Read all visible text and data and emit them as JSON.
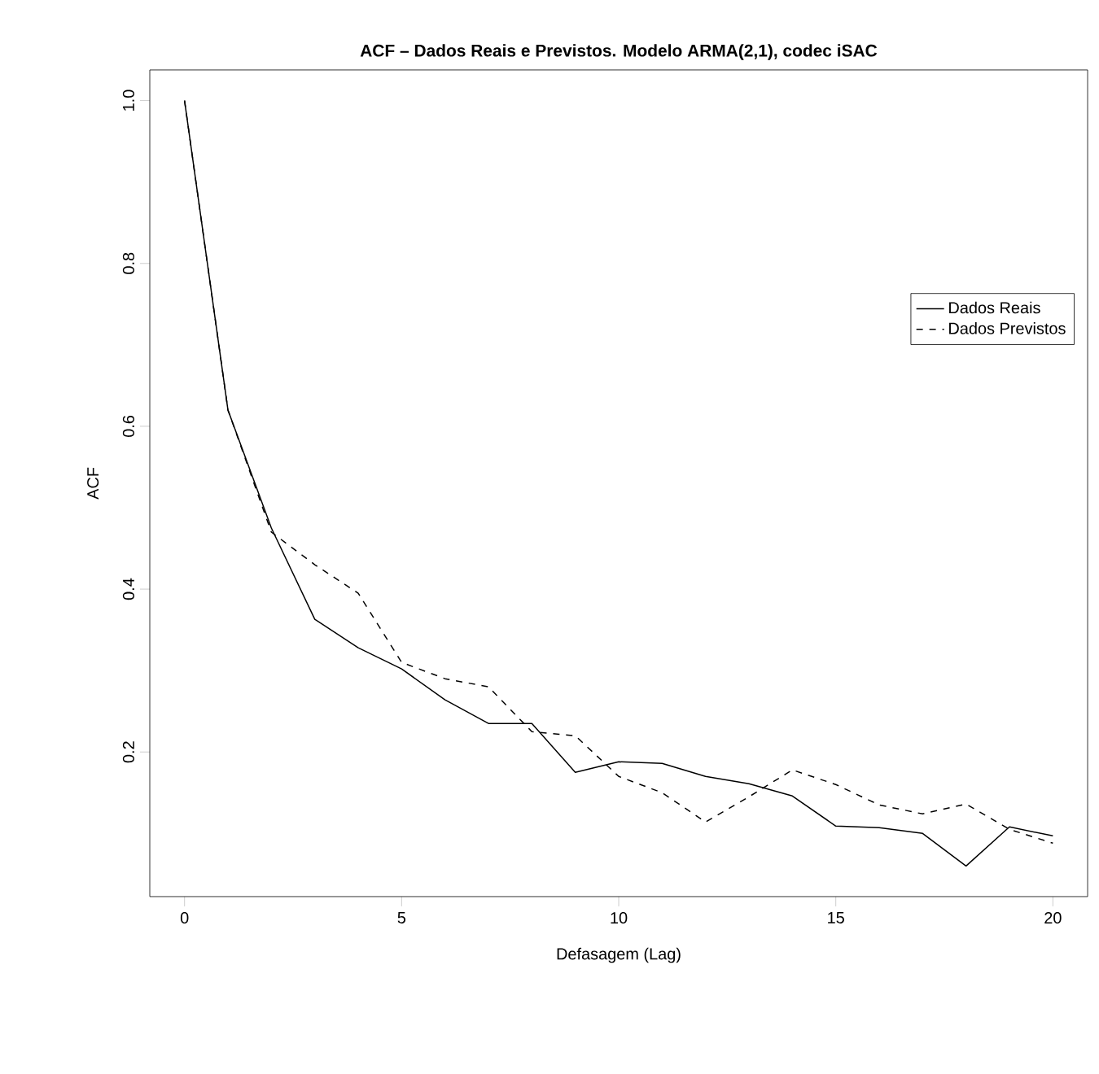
{
  "chart_data": {
    "type": "line",
    "title": "ACF – Dados Reais e Previstos. Modelo ARMA(2,1), codec iSAC",
    "xlabel": "Defasagem (Lag)",
    "ylabel": "ACF",
    "x": [
      0,
      1,
      2,
      3,
      4,
      5,
      6,
      7,
      8,
      9,
      10,
      11,
      12,
      13,
      14,
      15,
      16,
      17,
      18,
      19,
      20
    ],
    "series": [
      {
        "name": "Dados Reais",
        "color": "#000000",
        "line_style": "solid",
        "values": [
          1.0,
          0.62,
          0.475,
          0.363,
          0.328,
          0.302,
          0.264,
          0.235,
          0.235,
          0.175,
          0.188,
          0.186,
          0.17,
          0.161,
          0.146,
          0.109,
          0.107,
          0.1,
          0.06,
          0.108,
          0.097
        ]
      },
      {
        "name": "Dados Previstos",
        "color": "#000000",
        "line_style": "dashed",
        "values": [
          1.0,
          0.62,
          0.47,
          0.43,
          0.395,
          0.31,
          0.29,
          0.28,
          0.225,
          0.22,
          0.17,
          0.15,
          0.114,
          0.145,
          0.178,
          0.16,
          0.135,
          0.124,
          0.136,
          0.105,
          0.088
        ]
      }
    ],
    "xlim": [
      -0.8,
      20.8
    ],
    "ylim": [
      0.0224,
      1.0376
    ],
    "xticks": [
      0,
      5,
      10,
      15,
      20
    ],
    "yticks": [
      0.2,
      0.4,
      0.6,
      0.8,
      {
        "value": 1.0,
        "label": "1.0"
      }
    ],
    "legend": "top right",
    "grid": false,
    "marker": "none"
  }
}
